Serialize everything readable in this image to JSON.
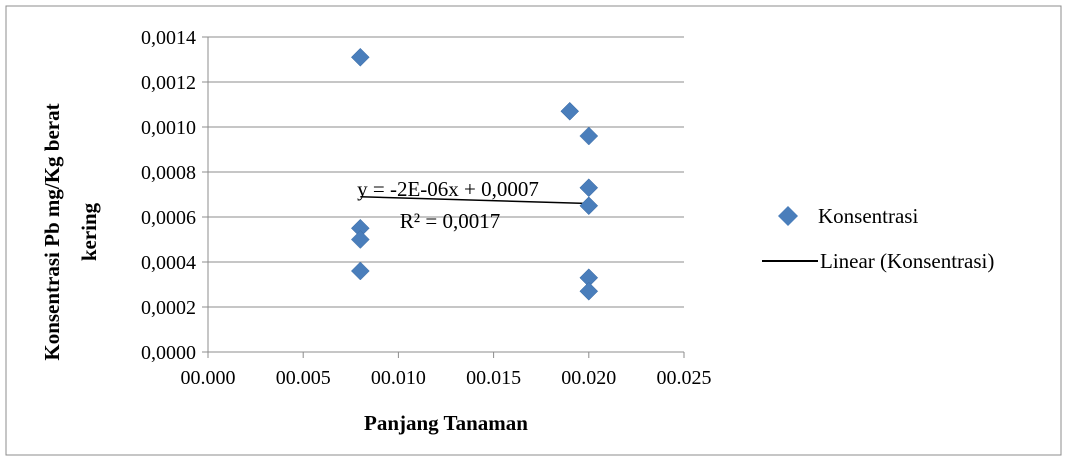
{
  "chart_data": {
    "type": "scatter",
    "xlabel": "Panjang Tanaman",
    "ylabel_lines": [
      "Konsentrasi Pb mg/Kg berat",
      "kering"
    ],
    "xlim": [
      0,
      0.025
    ],
    "ylim": [
      0,
      0.0014
    ],
    "x_ticks": [
      0,
      0.005,
      0.01,
      0.015,
      0.02,
      0.025
    ],
    "x_tick_labels": [
      "00.000",
      "00.005",
      "00.010",
      "00.015",
      "00.020",
      "00.025"
    ],
    "y_ticks": [
      0,
      0.0002,
      0.0004,
      0.0006,
      0.0008,
      0.001,
      0.0012,
      0.0014
    ],
    "y_tick_labels": [
      "0,0000",
      "0,0002",
      "0,0004",
      "0,0006",
      "0,0008",
      "0,0010",
      "0,0012",
      "0,0014"
    ],
    "grid": "horizontal",
    "series": [
      {
        "name": "Konsentrasi",
        "color": "#4a7ebb",
        "marker": "diamond",
        "points": [
          {
            "x": 0.008,
            "y": 0.00131
          },
          {
            "x": 0.008,
            "y": 0.00055
          },
          {
            "x": 0.008,
            "y": 0.0005
          },
          {
            "x": 0.008,
            "y": 0.00036
          },
          {
            "x": 0.019,
            "y": 0.00107
          },
          {
            "x": 0.02,
            "y": 0.00096
          },
          {
            "x": 0.02,
            "y": 0.00073
          },
          {
            "x": 0.02,
            "y": 0.00065
          },
          {
            "x": 0.02,
            "y": 0.00033
          },
          {
            "x": 0.02,
            "y": 0.00027
          }
        ]
      }
    ],
    "trendline": {
      "name": "Linear (Konsentrasi)",
      "color": "#000000",
      "x_range": [
        0.008,
        0.02
      ],
      "y_values": [
        0.00069,
        0.00066
      ],
      "equation": "y = -2E-06x + 0,0007",
      "r2": "R² = 0,0017"
    },
    "legend": {
      "placement": "right",
      "entries": [
        "Konsentrasi",
        "Linear (Konsentrasi)"
      ]
    }
  }
}
